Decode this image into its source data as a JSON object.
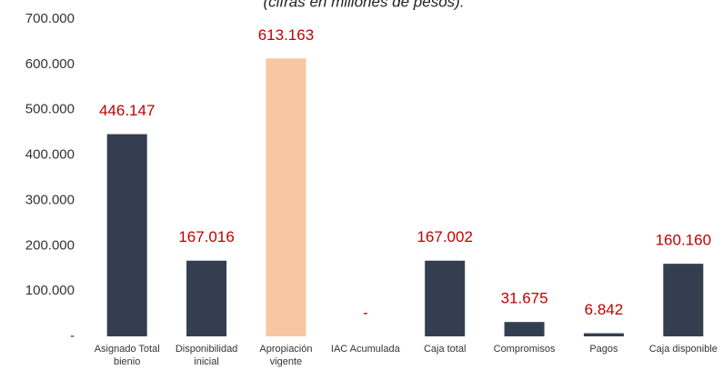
{
  "chart_data": {
    "type": "bar",
    "subtitle": "(cifras en millones de pesos).",
    "categories": [
      "Asignado Total bienio",
      "Disponibilidad inicial",
      "Apropiación vigente",
      "IAC Acumulada",
      "Caja total",
      "Compromisos",
      "Pagos",
      "Caja disponible"
    ],
    "values": [
      446147,
      167016,
      613163,
      0,
      167002,
      31675,
      6842,
      160160
    ],
    "value_labels": [
      "446.147",
      "167.016",
      "613.163",
      "-",
      "167.002",
      "31.675",
      "6.842",
      "160.160"
    ],
    "colors": [
      "#333f50",
      "#333f50",
      "#f7c6a3",
      "#333f50",
      "#333f50",
      "#333f50",
      "#333f50",
      "#333f50"
    ],
    "value_label_color": "#c00000",
    "ylim": [
      0,
      700000
    ],
    "yticks": [
      {
        "value": 0,
        "label": "-"
      },
      {
        "value": 100000,
        "label": "100.000"
      },
      {
        "value": 200000,
        "label": "200.000"
      },
      {
        "value": 300000,
        "label": "300.000"
      },
      {
        "value": 400000,
        "label": "400.000"
      },
      {
        "value": 500000,
        "label": "500.000"
      },
      {
        "value": 600000,
        "label": "600.000"
      },
      {
        "value": 700000,
        "label": "700.000"
      }
    ],
    "grid": false
  }
}
